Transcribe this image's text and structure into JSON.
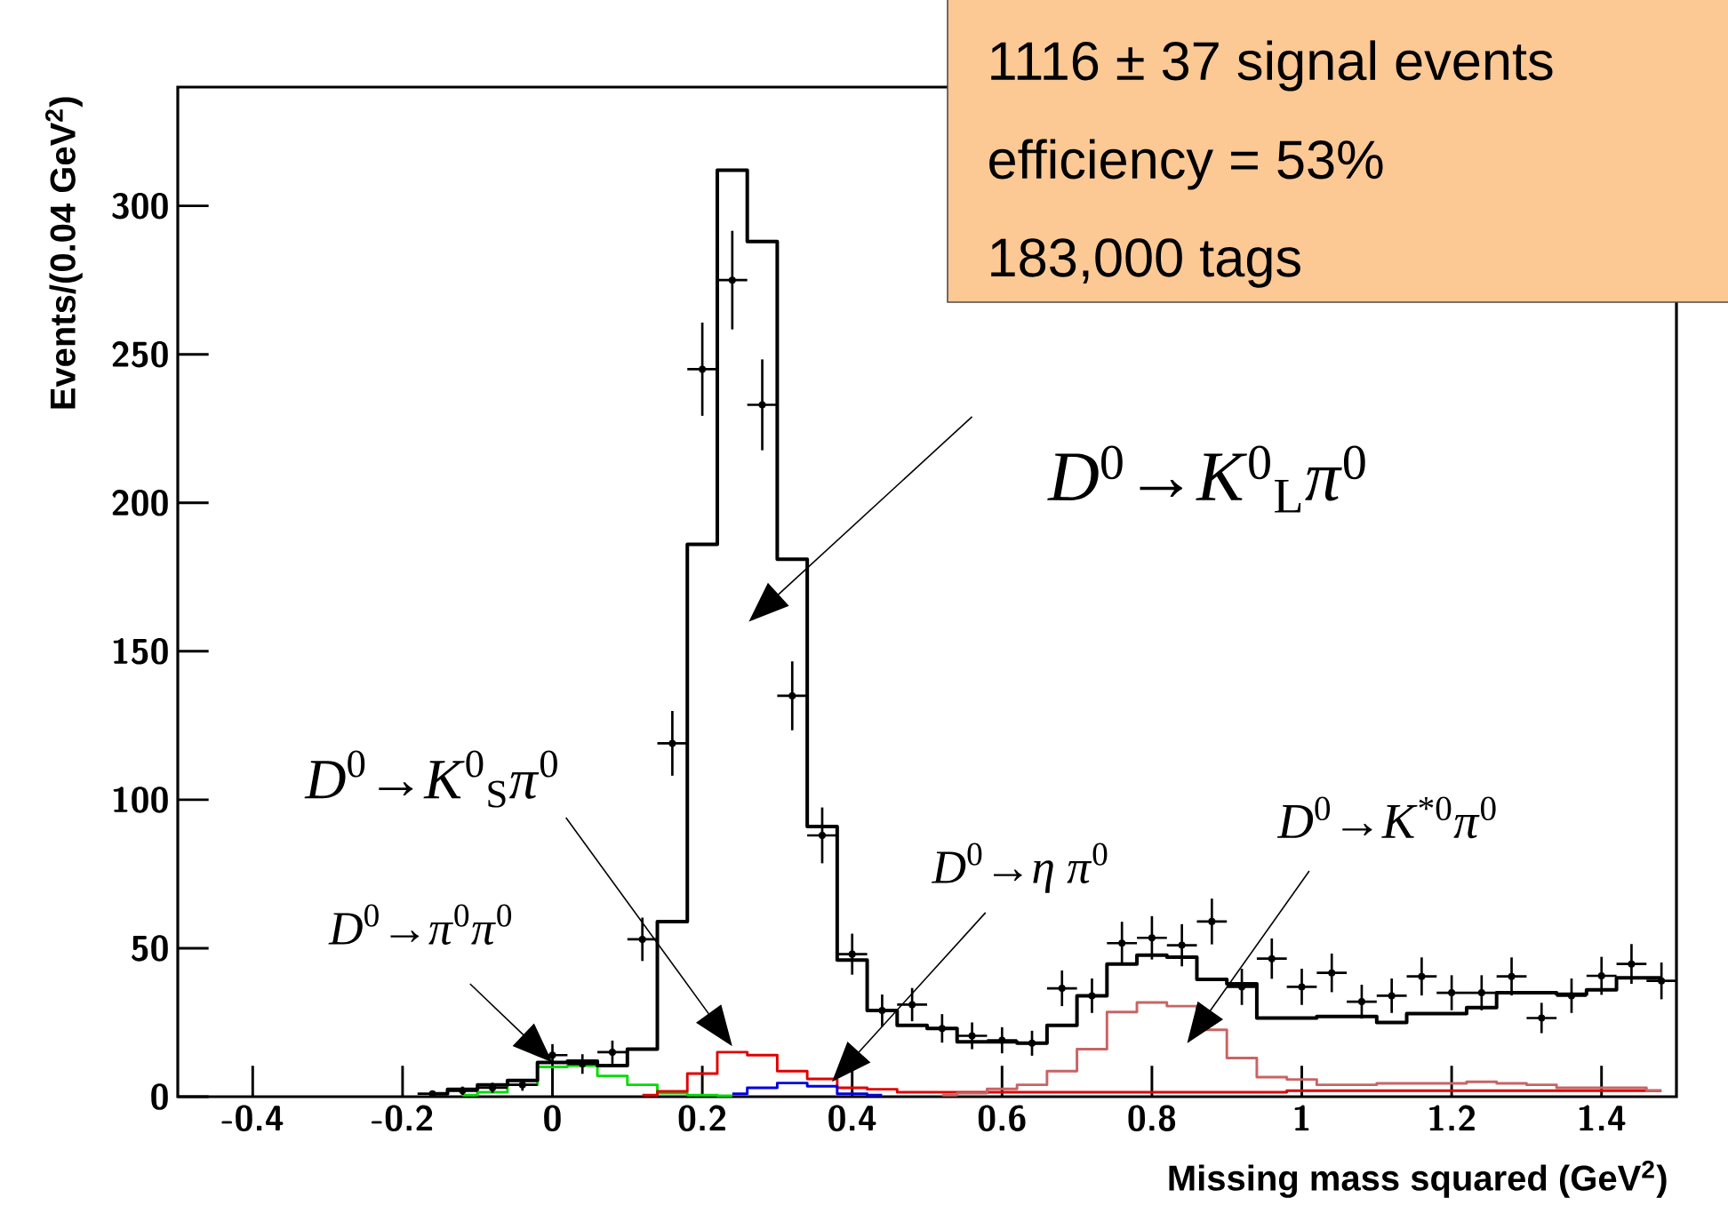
{
  "chart_data": {
    "type": "step",
    "xlabel": "Missing mass squared (GeV$^{2}$)",
    "ylabel": "Events/(0.04 GeV$^{2}$)",
    "x": [
      -0.16,
      -0.12,
      -0.08,
      -0.04,
      0,
      0.04,
      0.08,
      0.12,
      0.16,
      0.2,
      0.24,
      0.28,
      0.32,
      0.36,
      0.4,
      0.44,
      0.48,
      0.52,
      0.56,
      0.6,
      0.64,
      0.68,
      0.72,
      0.76,
      0.8,
      0.84,
      0.88,
      0.92,
      0.96,
      1.0,
      1.04,
      1.08,
      1.12,
      1.16,
      1.2,
      1.24,
      1.28,
      1.32,
      1.36,
      1.4,
      1.44,
      1.48
    ],
    "xlim": [
      -0.5,
      1.5
    ],
    "xticks": [
      -0.4,
      -0.2,
      0,
      0.2,
      0.4,
      0.6,
      0.8,
      1,
      1.2,
      1.4
    ],
    "ylim": [
      0,
      340
    ],
    "yticks": [
      0,
      50,
      100,
      150,
      200,
      250,
      300
    ],
    "series": [
      {
        "color": "#00dd00",
        "values": [
          null,
          0.5,
          1.5,
          4,
          10,
          10.5,
          7,
          4,
          1.2,
          0.5,
          0.3,
          null,
          null,
          null,
          null,
          null,
          null,
          null,
          null,
          null,
          null,
          null,
          null,
          null,
          null,
          null,
          null,
          null,
          null,
          null,
          null,
          null,
          null,
          null,
          null,
          null,
          null,
          null,
          null,
          null,
          null,
          null
        ]
      },
      {
        "color": "#e00000",
        "values": [
          null,
          null,
          null,
          null,
          null,
          null,
          null,
          0.5,
          1.8,
          7.8,
          15,
          14,
          8.6,
          6,
          3,
          2.5,
          1.5,
          1.5,
          1.5,
          1.5,
          1.5,
          1.5,
          1.5,
          1.5,
          1.5,
          1.5,
          1.5,
          1.5,
          1.5,
          2,
          2,
          2,
          2,
          2,
          2,
          2,
          2,
          2,
          2,
          2,
          2,
          2
        ]
      },
      {
        "color": "#0000e0",
        "values": [
          null,
          null,
          null,
          null,
          null,
          null,
          null,
          null,
          null,
          null,
          1,
          3,
          4.6,
          3.5,
          1,
          0.5,
          null,
          null,
          null,
          null,
          null,
          null,
          null,
          null,
          null,
          null,
          null,
          null,
          null,
          null,
          null,
          null,
          null,
          null,
          null,
          null,
          null,
          null,
          null,
          null,
          null,
          null
        ]
      },
      {
        "color": "#c86464",
        "values": [
          null,
          null,
          null,
          null,
          null,
          null,
          null,
          null,
          null,
          null,
          null,
          null,
          null,
          null,
          null,
          null,
          null,
          0.5,
          1.2,
          2.6,
          4,
          8.6,
          16,
          28.5,
          31.7,
          30.5,
          22.5,
          13,
          6.6,
          5.8,
          4,
          4,
          4.5,
          4.5,
          4.5,
          5,
          4.5,
          4,
          3,
          3,
          3,
          2
        ]
      },
      {
        "color": "#000000",
        "values": [
          1,
          2.5,
          4,
          5.5,
          11.5,
          12,
          10.5,
          16,
          59,
          186,
          312,
          288,
          181,
          91,
          46,
          29,
          24,
          23,
          18.5,
          18.5,
          18,
          24,
          34,
          44.7,
          47.7,
          47,
          39.5,
          38,
          26.5,
          26.5,
          27,
          27,
          25,
          28,
          28,
          30,
          35,
          35,
          34.5,
          36,
          40,
          40
        ]
      },
      {
        "type": "scatter",
        "color": "#000000",
        "values": [
          1,
          2,
          3,
          4,
          14,
          11,
          15,
          53,
          119,
          245,
          275,
          233,
          135,
          88,
          48,
          29,
          31,
          23,
          20.5,
          19,
          18,
          36.5,
          34,
          51.7,
          53.5,
          51,
          59,
          37,
          46.5,
          37,
          41.7,
          32,
          34,
          40.5,
          35,
          35,
          40.5,
          26.5,
          34,
          40.7,
          44.7,
          39
        ],
        "errors": [
          1,
          1.4,
          1.7,
          2,
          3.7,
          3.3,
          3.9,
          7.3,
          10.9,
          15.7,
          16.6,
          15.3,
          11.6,
          9.4,
          6.9,
          5.4,
          5.6,
          4.8,
          4.5,
          4.4,
          4.2,
          6,
          5.8,
          7.2,
          7.3,
          7.1,
          7.7,
          6.1,
          6.8,
          6.1,
          6.5,
          5.7,
          5.8,
          6.4,
          5.9,
          5.9,
          6.4,
          5.1,
          5.8,
          6.4,
          6.7,
          6.2
        ],
        "xerrors": [
          0.02,
          0.02,
          0.02,
          0.02,
          0.02,
          0.02,
          0.02,
          0.02,
          0.02,
          0.02,
          0.02,
          0.02,
          0.02,
          0.02,
          0.02,
          0.02,
          0.02,
          0.02,
          0.02,
          0.02,
          0.02,
          0.02,
          0.02,
          0.02,
          0.02,
          0.02,
          0.02,
          0.02,
          0.02,
          0.02,
          0.02,
          0.02,
          0.02,
          0.02,
          0.02,
          0.02,
          0.02,
          0.02,
          0.02,
          0.02,
          0.02,
          0.02
        ]
      }
    ],
    "annotations": [
      "1116 ± 37 signal events",
      "efficiency = 53%",
      "183,000 tags",
      "*D*$^{0}$→*K*$^{0}$$_{L}$*π*$^{0}$",
      "*D*$^{0}$→*K*$^{0}$$_{S}$*π*$^{0}$",
      {
        "text": "*D*$^{0}$→*π*$^{0}$*π*$^{0}$",
        "x": 0,
        "y": 11.5
      },
      "*D*$^{0}$→*η* *π*$^{0}$",
      "*D*$^{0}$→*K*$^{*0}$*π*$^{0}$"
    ]
  }
}
